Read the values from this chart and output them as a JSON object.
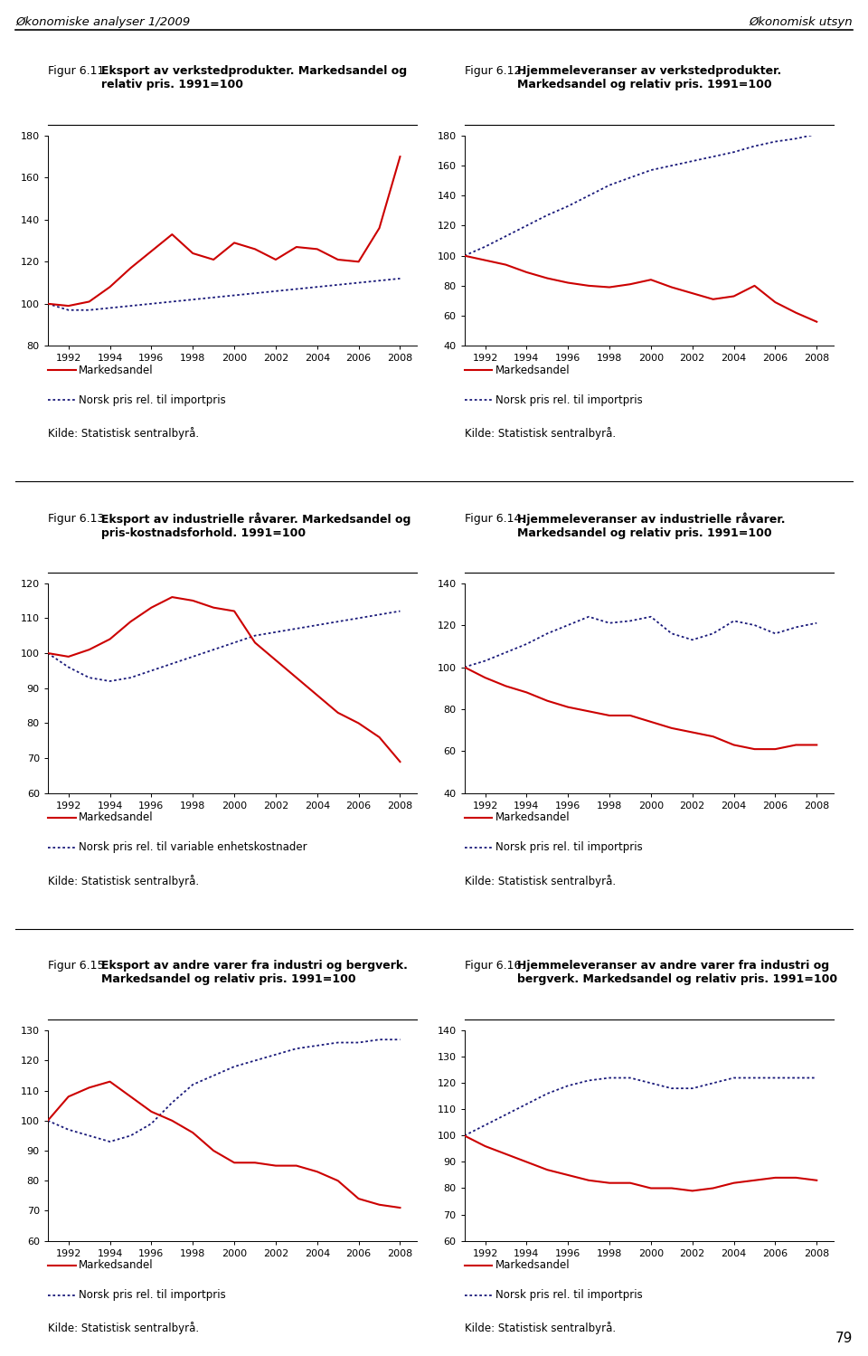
{
  "header_left": "Økonomiske analyser 1/2009",
  "header_right": "Økonomisk utsyn",
  "footer_text": "79",
  "years": [
    1991,
    1992,
    1993,
    1994,
    1995,
    1996,
    1997,
    1998,
    1999,
    2000,
    2001,
    2002,
    2003,
    2004,
    2005,
    2006,
    2007,
    2008
  ],
  "fig611": {
    "title_plain": "Figur 6.11.",
    "title_bold": "Eksport av verkstedprodukter. Markedsandel og relativ pris. 1991=100",
    "markedsandel": [
      100,
      99,
      101,
      108,
      117,
      125,
      133,
      124,
      121,
      129,
      126,
      121,
      127,
      126,
      121,
      120,
      136,
      170
    ],
    "relativ_pris": [
      100,
      97,
      97,
      98,
      99,
      100,
      101,
      102,
      103,
      104,
      105,
      106,
      107,
      108,
      109,
      110,
      111,
      112
    ],
    "legend2": "Norsk pris rel. til importpris",
    "ylim": [
      80,
      180
    ],
    "yticks": [
      80,
      100,
      120,
      140,
      160,
      180
    ]
  },
  "fig612": {
    "title_plain": "Figur 6.12.",
    "title_bold": "Hjemmeleveranser av verkstedprodukter. Markedsandel og relativ pris. 1991=100",
    "markedsandel": [
      100,
      97,
      94,
      89,
      85,
      82,
      80,
      79,
      81,
      84,
      79,
      75,
      71,
      73,
      80,
      69,
      62,
      56
    ],
    "relativ_pris": [
      100,
      106,
      113,
      120,
      127,
      133,
      140,
      147,
      152,
      157,
      160,
      163,
      166,
      169,
      173,
      176,
      178,
      181
    ],
    "legend2": "Norsk pris rel. til importpris",
    "ylim": [
      40,
      180
    ],
    "yticks": [
      40,
      60,
      80,
      100,
      120,
      140,
      160,
      180
    ]
  },
  "fig613": {
    "title_plain": "Figur 6.13.",
    "title_bold": "Eksport av industrielle råvarer. Markedsandel og pris-kostnadsforhold. 1991=100",
    "markedsandel": [
      100,
      99,
      101,
      104,
      109,
      113,
      116,
      115,
      113,
      112,
      103,
      98,
      93,
      88,
      83,
      80,
      76,
      69
    ],
    "relativ_pris": [
      100,
      96,
      93,
      92,
      93,
      95,
      97,
      99,
      101,
      103,
      105,
      106,
      107,
      108,
      109,
      110,
      111,
      112
    ],
    "legend2": "Norsk pris rel. til variable enhetskostnader",
    "ylim": [
      60,
      120
    ],
    "yticks": [
      60,
      70,
      80,
      90,
      100,
      110,
      120
    ]
  },
  "fig614": {
    "title_plain": "Figur 6.14.",
    "title_bold": "Hjemmeleveranser av industrielle råvarer. Markedsandel og relativ pris. 1991=100",
    "markedsandel": [
      100,
      95,
      91,
      88,
      84,
      81,
      79,
      77,
      77,
      74,
      71,
      69,
      67,
      63,
      61,
      61,
      63,
      63
    ],
    "relativ_pris": [
      100,
      103,
      107,
      111,
      116,
      120,
      124,
      121,
      122,
      124,
      116,
      113,
      116,
      122,
      120,
      116,
      119,
      121
    ],
    "legend2": "Norsk pris rel. til importpris",
    "ylim": [
      40,
      140
    ],
    "yticks": [
      40,
      60,
      80,
      100,
      120,
      140
    ]
  },
  "fig615": {
    "title_plain": "Figur 6.15.",
    "title_bold": "Eksport av andre varer fra industri og bergverk. Markedsandel og relativ pris. 1991=100",
    "markedsandel": [
      100,
      108,
      111,
      113,
      108,
      103,
      100,
      96,
      90,
      86,
      86,
      85,
      85,
      83,
      80,
      74,
      72,
      71
    ],
    "relativ_pris": [
      100,
      97,
      95,
      93,
      95,
      99,
      106,
      112,
      115,
      118,
      120,
      122,
      124,
      125,
      126,
      126,
      127,
      127
    ],
    "legend2": "Norsk pris rel. til importpris",
    "ylim": [
      60,
      130
    ],
    "yticks": [
      60,
      70,
      80,
      90,
      100,
      110,
      120,
      130
    ]
  },
  "fig616": {
    "title_plain": "Figur 6.16.",
    "title_bold": "Hjemmeleveranser av andre varer fra industri og bergverk. Markedsandel og relativ pris. 1991=100",
    "markedsandel": [
      100,
      96,
      93,
      90,
      87,
      85,
      83,
      82,
      82,
      80,
      80,
      79,
      80,
      82,
      83,
      84,
      84,
      83
    ],
    "relativ_pris": [
      100,
      104,
      108,
      112,
      116,
      119,
      121,
      122,
      122,
      120,
      118,
      118,
      120,
      122,
      122,
      122,
      122,
      122
    ],
    "legend2": "Norsk pris rel. til importpris",
    "ylim": [
      60,
      140
    ],
    "yticks": [
      60,
      70,
      80,
      90,
      100,
      110,
      120,
      130,
      140
    ]
  },
  "line_color_red": "#cc0000",
  "line_color_blue": "#1a1a7a",
  "legend1": "Markedsandel",
  "kilde": "Kilde: Statistisk sentralbyrå.",
  "xticklabels": [
    "1992",
    "1994",
    "1996",
    "1998",
    "2000",
    "2002",
    "2004",
    "2006",
    "2008"
  ],
  "xticks": [
    1992,
    1994,
    1996,
    1998,
    2000,
    2002,
    2004,
    2006,
    2008
  ]
}
